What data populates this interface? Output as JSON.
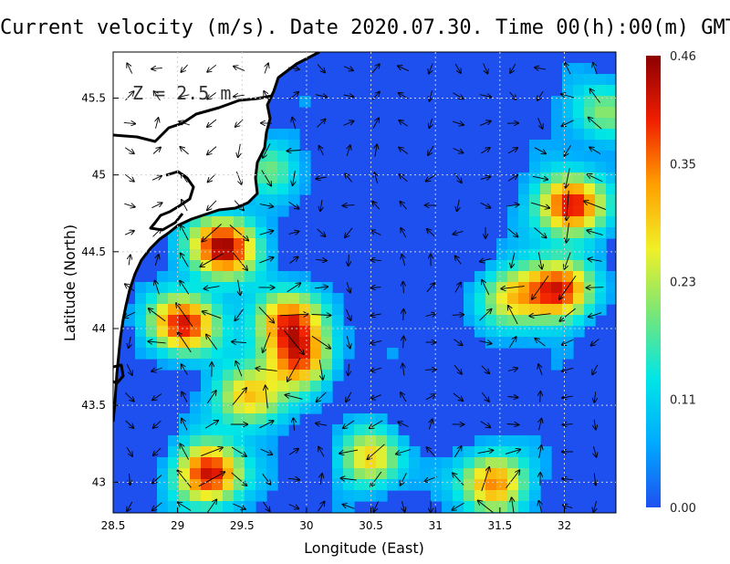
{
  "title": "Current velocity (m/s). Date 2020.07.30. Time 00(h):00(m) GMT",
  "depth_label": "Z = 2.5 m",
  "x_axis": {
    "label": "Longitude (East)",
    "ticks": [
      "28.5",
      "29",
      "29.5",
      "30",
      "30.5",
      "31",
      "31.5",
      "32"
    ],
    "range": [
      28.5,
      32.4
    ]
  },
  "y_axis": {
    "label": "Latitude (North)",
    "ticks": [
      "43",
      "43.5",
      "44",
      "44.5",
      "45",
      "45.5"
    ],
    "range": [
      42.8,
      45.8
    ]
  },
  "colorbar": {
    "ticks": [
      "0.00",
      "0.11",
      "0.23",
      "0.35",
      "0.46"
    ],
    "range": [
      0.0,
      0.46
    ],
    "colors": [
      "#1e50f0",
      "#00aaff",
      "#00e6e6",
      "#78e678",
      "#f0f028",
      "#ffa000",
      "#f01e00",
      "#8c0000"
    ]
  },
  "chart_data": {
    "type": "heatmap",
    "title": "Current velocity (m/s). Date 2020.07.30. Time 00(h):00(m) GMT",
    "xlabel": "Longitude (East)",
    "ylabel": "Latitude (North)",
    "xlim": [
      28.5,
      32.4
    ],
    "ylim": [
      42.8,
      45.8
    ],
    "value_range": [
      0.0,
      0.46
    ],
    "hotspots": [
      {
        "lon": 29.35,
        "lat": 44.53,
        "speed": 0.42
      },
      {
        "lon": 29.05,
        "lat": 44.03,
        "speed": 0.38
      },
      {
        "lon": 29.25,
        "lat": 43.05,
        "speed": 0.4
      },
      {
        "lon": 32.05,
        "lat": 44.8,
        "speed": 0.4
      },
      {
        "lon": 31.95,
        "lat": 44.25,
        "speed": 0.36
      },
      {
        "lon": 29.85,
        "lat": 44.05,
        "speed": 0.33
      },
      {
        "lon": 31.45,
        "lat": 43.0,
        "speed": 0.32
      },
      {
        "lon": 29.95,
        "lat": 43.8,
        "speed": 0.3
      },
      {
        "lon": 29.55,
        "lat": 43.55,
        "speed": 0.28
      },
      {
        "lon": 30.5,
        "lat": 43.15,
        "speed": 0.24
      },
      {
        "lon": 31.6,
        "lat": 44.2,
        "speed": 0.22
      },
      {
        "lon": 32.3,
        "lat": 45.4,
        "speed": 0.18
      },
      {
        "lon": 29.7,
        "lat": 45.05,
        "speed": 0.14
      }
    ],
    "land_color": "#ffffff",
    "coastline_color": "#000000"
  }
}
